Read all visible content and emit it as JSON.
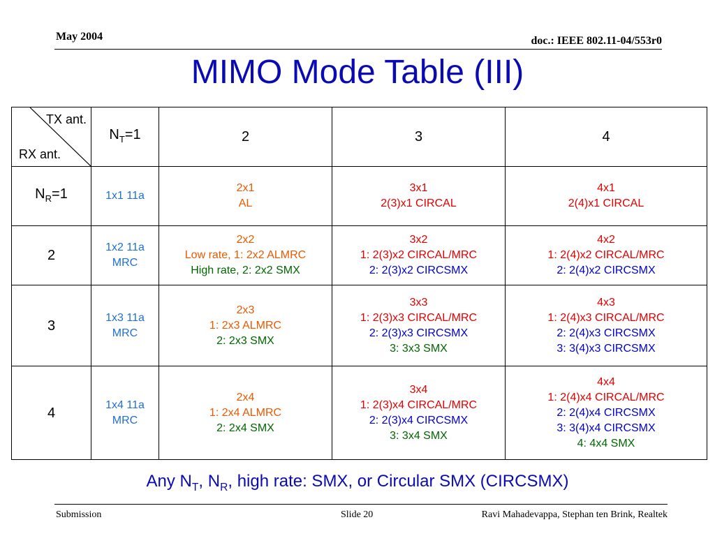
{
  "header": {
    "date": "May 2004",
    "doc": "doc.: IEEE 802.11-04/553r0"
  },
  "title": "MIMO Mode Table (III)",
  "table": {
    "corner_tx": "TX ant.",
    "corner_rx": "RX ant.",
    "col_nt": {
      "main": "N",
      "sub": "T",
      "rest": "=1"
    },
    "col_headers": [
      "2",
      "3",
      "4"
    ],
    "rows": [
      {
        "label_main": "N",
        "label_sub": "R",
        "label_rest": "=1",
        "c1": [
          "1x1 11a"
        ],
        "c2": [
          {
            "t": "2x1",
            "c": "orange"
          },
          {
            "t": "AL",
            "c": "orange"
          }
        ],
        "c3": [
          {
            "t": "3x1",
            "c": "red"
          },
          {
            "t": "2(3)x1 CIRCAL",
            "c": "red"
          }
        ],
        "c4": [
          {
            "t": "4x1",
            "c": "red"
          },
          {
            "t": "2(4)x1 CIRCAL",
            "c": "red"
          }
        ]
      },
      {
        "label": "2",
        "c1": [
          "1x2 11a",
          "MRC"
        ],
        "c2": [
          {
            "t": "2x2",
            "c": "orange"
          },
          {
            "t": "Low rate, 1: 2x2 ALMRC",
            "c": "orange"
          },
          {
            "t": "High rate, 2: 2x2 SMX",
            "c": "green"
          }
        ],
        "c3": [
          {
            "t": "3x2",
            "c": "red"
          },
          {
            "t": "1: 2(3)x2 CIRCAL/MRC",
            "c": "red"
          },
          {
            "t": "2: 2(3)x2 CIRCSMX",
            "c": "blue"
          }
        ],
        "c4": [
          {
            "t": "4x2",
            "c": "red"
          },
          {
            "t": "1: 2(4)x2 CIRCAL/MRC",
            "c": "red"
          },
          {
            "t": "2: 2(4)x2 CIRCSMX",
            "c": "blue"
          }
        ]
      },
      {
        "label": "3",
        "c1": [
          "1x3 11a",
          "MRC"
        ],
        "c2": [
          {
            "t": "2x3",
            "c": "orange"
          },
          {
            "t": "1: 2x3 ALMRC",
            "c": "orange"
          },
          {
            "t": "2: 2x3 SMX",
            "c": "green"
          }
        ],
        "c3": [
          {
            "t": "3x3",
            "c": "red"
          },
          {
            "t": "1: 2(3)x3 CIRCAL/MRC",
            "c": "red"
          },
          {
            "t": "2: 2(3)x3 CIRCSMX",
            "c": "blue"
          },
          {
            "t": "3: 3x3 SMX",
            "c": "green"
          }
        ],
        "c4": [
          {
            "t": "4x3",
            "c": "red"
          },
          {
            "t": "1: 2(4)x3 CIRCAL/MRC",
            "c": "red"
          },
          {
            "t": "2: 2(4)x3 CIRCSMX",
            "c": "blue"
          },
          {
            "t": "3: 3(4)x3 CIRCSMX",
            "c": "blue"
          }
        ]
      },
      {
        "label": "4",
        "c1": [
          "1x4 11a",
          "MRC"
        ],
        "c2": [
          {
            "t": "2x4",
            "c": "orange"
          },
          {
            "t": "1: 2x4 ALMRC",
            "c": "orange"
          },
          {
            "t": "2: 2x4 SMX",
            "c": "green"
          }
        ],
        "c3": [
          {
            "t": "3x4",
            "c": "red"
          },
          {
            "t": "1: 2(3)x4 CIRCAL/MRC",
            "c": "red"
          },
          {
            "t": "2: 2(3)x4 CIRCSMX",
            "c": "blue"
          },
          {
            "t": "3: 3x4 SMX",
            "c": "green"
          }
        ],
        "c4": [
          {
            "t": "4x4",
            "c": "red"
          },
          {
            "t": "1: 2(4)x4 CIRCAL/MRC",
            "c": "red"
          },
          {
            "t": "2: 2(4)x4 CIRCSMX",
            "c": "blue"
          },
          {
            "t": "3: 3(4)x4 CIRCSMX",
            "c": "blue"
          },
          {
            "t": "4: 4x4 SMX",
            "c": "green"
          }
        ]
      }
    ]
  },
  "summary": {
    "part1": "Any N",
    "sub1": "T",
    "part2": ", N",
    "sub2": "R",
    "part3": ", high rate: SMX, or Circular SMX (CIRCSMX)"
  },
  "footer": {
    "left": "Submission",
    "center": "Slide 20",
    "right": "Ravi Mahadevappa, Stephan ten Brink, Realtek"
  },
  "colors": {
    "title": "#0a0ab4",
    "orange": "#e85a00",
    "red": "#e00000",
    "blue": "#0000d0",
    "green": "#006600",
    "c1": "#1f6fd4"
  }
}
